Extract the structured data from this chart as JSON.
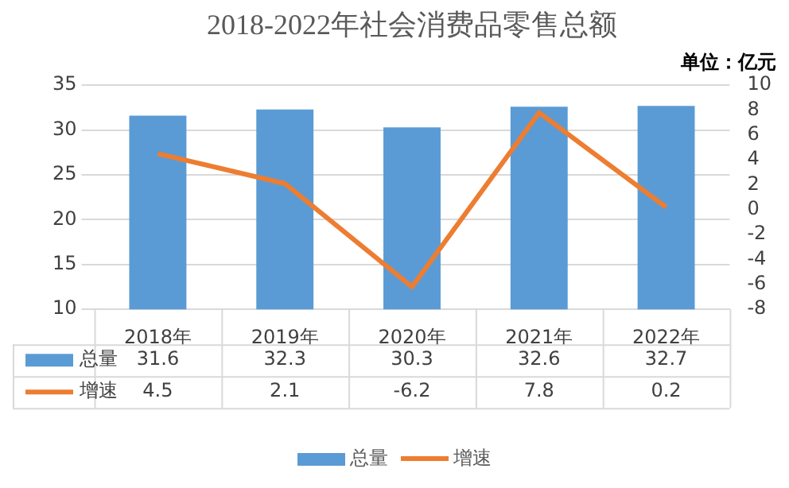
{
  "chart_data": {
    "type": "bar",
    "title": "2018-2022年社会消费品零售总额",
    "annotations": [
      "单位：亿元"
    ],
    "categories": [
      "2018年",
      "2019年",
      "2020年",
      "2021年",
      "2022年"
    ],
    "series": [
      {
        "name": "总量",
        "color": "#5b9bd5",
        "values": [
          31.6,
          32.3,
          30.3,
          32.6,
          32.7
        ]
      },
      {
        "name": "增速",
        "type": "line",
        "axis": "y2",
        "color": "#ed7d31",
        "values": [
          4.5,
          2.1,
          -6.2,
          7.8,
          0.2
        ]
      }
    ],
    "ylim": [
      10,
      35
    ],
    "yticks": [
      10,
      15,
      20,
      25,
      30,
      35
    ],
    "y2lim": [
      -8,
      10
    ],
    "y2ticks": [
      -8,
      -6,
      -4,
      -2,
      0,
      2,
      4,
      6,
      8,
      10
    ],
    "grid": "y",
    "legend": "bottom",
    "data_labels": true,
    "marker": "none",
    "line_style": "solid"
  }
}
